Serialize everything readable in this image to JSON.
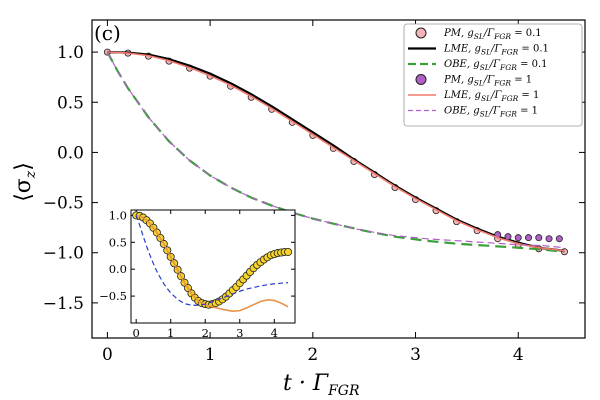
{
  "chart_data": {
    "panel_label": "(c)",
    "main": {
      "type": "line",
      "xlabel": "t · Γ",
      "xlabel_sub": "FGR",
      "ylabel": "⟨σ",
      "ylabel_sub": "z",
      "ylabel_close": "⟩",
      "xlim": [
        -0.15,
        4.65
      ],
      "ylim": [
        -1.85,
        1.32
      ],
      "xticks": [
        0,
        1,
        2,
        3,
        4
      ],
      "yticks": [
        1.0,
        0.5,
        0.0,
        -0.5,
        -1.0,
        -1.5
      ],
      "ytick_labels": [
        "1.0",
        "0.5",
        "0.0",
        "−0.5",
        "−1.0",
        "−1.5"
      ],
      "series": [
        {
          "name": "PM, g_SL/Γ_FGR = 0.1",
          "style": "markers",
          "fill": "#f2b3b9",
          "stroke": "#222222",
          "x": [
            0.0,
            0.2,
            0.4,
            0.6,
            0.8,
            1.0,
            1.2,
            1.4,
            1.6,
            1.8,
            2.0,
            2.2,
            2.4,
            2.6,
            2.8,
            3.0,
            3.2,
            3.4,
            3.6,
            3.8,
            4.0,
            4.2,
            4.45
          ],
          "y": [
            1.0,
            0.99,
            0.96,
            0.91,
            0.84,
            0.76,
            0.66,
            0.55,
            0.43,
            0.3,
            0.17,
            0.04,
            -0.09,
            -0.22,
            -0.35,
            -0.47,
            -0.58,
            -0.69,
            -0.78,
            -0.86,
            -0.92,
            -0.96,
            -0.99
          ]
        },
        {
          "name": "LME, g_SL/Γ_FGR = 0.1",
          "style": "line",
          "color": "#000000",
          "width": 2.2,
          "x": [
            0.0,
            0.2,
            0.4,
            0.6,
            0.8,
            1.0,
            1.2,
            1.4,
            1.6,
            1.8,
            2.0,
            2.2,
            2.4,
            2.6,
            2.8,
            3.0,
            3.2,
            3.4,
            3.6,
            3.8,
            4.0,
            4.2,
            4.45
          ],
          "y": [
            1.0,
            0.995,
            0.975,
            0.93,
            0.865,
            0.785,
            0.69,
            0.58,
            0.46,
            0.33,
            0.2,
            0.07,
            -0.07,
            -0.2,
            -0.33,
            -0.45,
            -0.56,
            -0.67,
            -0.76,
            -0.84,
            -0.9,
            -0.95,
            -0.98
          ]
        },
        {
          "name": "OBE, g_SL/Γ_FGR = 0.1",
          "style": "dash",
          "color": "#3aa13a",
          "width": 2.2,
          "x": [
            0.0,
            0.1,
            0.2,
            0.4,
            0.6,
            0.8,
            1.0,
            1.2,
            1.4,
            1.6,
            1.8,
            2.0,
            2.2,
            2.5,
            2.8,
            3.1,
            3.4,
            3.7,
            4.0,
            4.25,
            4.45
          ],
          "y": [
            1.0,
            0.81,
            0.64,
            0.35,
            0.11,
            -0.08,
            -0.23,
            -0.35,
            -0.45,
            -0.53,
            -0.6,
            -0.66,
            -0.71,
            -0.78,
            -0.84,
            -0.88,
            -0.91,
            -0.93,
            -0.95,
            -0.97,
            -0.99
          ]
        },
        {
          "name": "PM, g_SL/Γ_FGR = 1",
          "style": "markers",
          "fill": "#b05fc6",
          "stroke": "#222222",
          "x": [
            3.8,
            3.9,
            4.0,
            4.1,
            4.2,
            4.3,
            4.4
          ],
          "y": [
            -0.82,
            -0.84,
            -0.85,
            -0.85,
            -0.85,
            -0.86,
            -0.86
          ]
        },
        {
          "name": "LME, g_SL/Γ_FGR = 1",
          "style": "line",
          "color": "#f0796b",
          "width": 1.6,
          "x": [
            0.0,
            0.2,
            0.4,
            0.6,
            0.8,
            1.0,
            1.2,
            1.4,
            1.6,
            1.8,
            2.0,
            2.2,
            2.4,
            2.6,
            2.8,
            3.0,
            3.2,
            3.4,
            3.6,
            3.8,
            4.0,
            4.2,
            4.45
          ],
          "y": [
            1.0,
            0.99,
            0.965,
            0.915,
            0.845,
            0.765,
            0.67,
            0.56,
            0.44,
            0.31,
            0.18,
            0.05,
            -0.08,
            -0.21,
            -0.34,
            -0.46,
            -0.57,
            -0.68,
            -0.77,
            -0.85,
            -0.91,
            -0.95,
            -0.98
          ]
        },
        {
          "name": "OBE, g_SL/Γ_FGR = 1",
          "style": "dash-thin",
          "color": "#b05fc6",
          "width": 1.2,
          "x": [
            0.0,
            0.1,
            0.2,
            0.4,
            0.6,
            0.8,
            1.0,
            1.2,
            1.4,
            1.6,
            1.8,
            2.0,
            2.2,
            2.5,
            2.8,
            3.1,
            3.4,
            3.7,
            4.0,
            4.25,
            4.45
          ],
          "y": [
            1.0,
            0.81,
            0.64,
            0.35,
            0.11,
            -0.08,
            -0.23,
            -0.35,
            -0.45,
            -0.53,
            -0.6,
            -0.66,
            -0.71,
            -0.78,
            -0.83,
            -0.86,
            -0.88,
            -0.9,
            -0.92,
            -0.93,
            -0.95
          ]
        }
      ],
      "legend": {
        "placement": "top-right",
        "entries": [
          {
            "name": "PM, g",
            "sub": "SL",
            "rest": "/Γ",
            "sub2": "FGR",
            "tail": " = 0.1"
          },
          {
            "name": "LME, g",
            "sub": "SL",
            "rest": "/Γ",
            "sub2": "FGR",
            "tail": " = 0.1"
          },
          {
            "name": "OBE, g",
            "sub": "SL",
            "rest": "/Γ",
            "sub2": "FGR",
            "tail": " = 0.1"
          },
          {
            "name": "PM, g",
            "sub": "SL",
            "rest": "/Γ",
            "sub2": "FGR",
            "tail": " = 1"
          },
          {
            "name": "LME, g",
            "sub": "SL",
            "rest": "/Γ",
            "sub2": "FGR",
            "tail": " = 1"
          },
          {
            "name": "OBE, g",
            "sub": "SL",
            "rest": "/Γ",
            "sub2": "FGR",
            "tail": " = 1"
          }
        ]
      }
    },
    "inset": {
      "type": "line",
      "xlim": [
        -0.15,
        4.6
      ],
      "ylim": [
        -1.0,
        1.1
      ],
      "xticks": [
        0,
        1,
        2,
        3,
        4
      ],
      "yticks": [
        1.0,
        0.5,
        0.0,
        -0.5
      ],
      "ytick_labels": [
        "1.0",
        "0.5",
        "0.0",
        "−0.5"
      ],
      "series": [
        {
          "name": "markers",
          "style": "markers",
          "fill": "#f5d328",
          "stroke": "#222222",
          "x": [
            0.0,
            0.1,
            0.2,
            0.3,
            0.4,
            0.5,
            0.6,
            0.7,
            0.8,
            0.9,
            1.0,
            1.1,
            1.2,
            1.3,
            1.4,
            1.5,
            1.6,
            1.7,
            1.8,
            1.9,
            2.0,
            2.1,
            2.2,
            2.3,
            2.4,
            2.5,
            2.6,
            2.7,
            2.8,
            2.9,
            3.0,
            3.1,
            3.2,
            3.3,
            3.4,
            3.5,
            3.6,
            3.7,
            3.8,
            3.9,
            4.0,
            4.1,
            4.2,
            4.3,
            4.4
          ],
          "y": [
            1.0,
            0.99,
            0.96,
            0.91,
            0.85,
            0.77,
            0.68,
            0.58,
            0.47,
            0.35,
            0.23,
            0.11,
            -0.01,
            -0.13,
            -0.25,
            -0.35,
            -0.45,
            -0.53,
            -0.59,
            -0.63,
            -0.65,
            -0.66,
            -0.65,
            -0.63,
            -0.6,
            -0.56,
            -0.51,
            -0.45,
            -0.39,
            -0.33,
            -0.26,
            -0.19,
            -0.12,
            -0.05,
            0.02,
            0.08,
            0.13,
            0.18,
            0.22,
            0.26,
            0.28,
            0.3,
            0.31,
            0.32,
            0.32
          ]
        },
        {
          "name": "orange",
          "style": "line",
          "color": "#e8924a",
          "width": 1.6,
          "x": [
            0.0,
            0.2,
            0.4,
            0.6,
            0.8,
            1.0,
            1.2,
            1.4,
            1.6,
            1.8,
            2.0,
            2.2,
            2.4,
            2.6,
            2.8,
            3.0,
            3.2,
            3.4,
            3.6,
            3.8,
            4.0,
            4.2,
            4.4
          ],
          "y": [
            1.0,
            0.96,
            0.85,
            0.68,
            0.47,
            0.23,
            -0.01,
            -0.25,
            -0.45,
            -0.59,
            -0.66,
            -0.7,
            -0.73,
            -0.76,
            -0.78,
            -0.77,
            -0.72,
            -0.66,
            -0.6,
            -0.57,
            -0.58,
            -0.63,
            -0.7
          ]
        },
        {
          "name": "blue",
          "style": "dash",
          "color": "#2b3fd0",
          "width": 1.2,
          "x": [
            0.0,
            0.1,
            0.2,
            0.3,
            0.4,
            0.5,
            0.6,
            0.7,
            0.8,
            0.9,
            1.0,
            1.2,
            1.4,
            1.6,
            1.8,
            2.0,
            2.2,
            2.4,
            2.6,
            2.8,
            3.0,
            3.2,
            3.4,
            3.6,
            3.8,
            4.0,
            4.2,
            4.4
          ],
          "y": [
            1.0,
            0.82,
            0.62,
            0.43,
            0.26,
            0.1,
            -0.04,
            -0.16,
            -0.27,
            -0.36,
            -0.44,
            -0.56,
            -0.64,
            -0.67,
            -0.67,
            -0.65,
            -0.61,
            -0.56,
            -0.51,
            -0.46,
            -0.41,
            -0.37,
            -0.34,
            -0.31,
            -0.29,
            -0.27,
            -0.26,
            -0.25
          ]
        }
      ]
    }
  }
}
